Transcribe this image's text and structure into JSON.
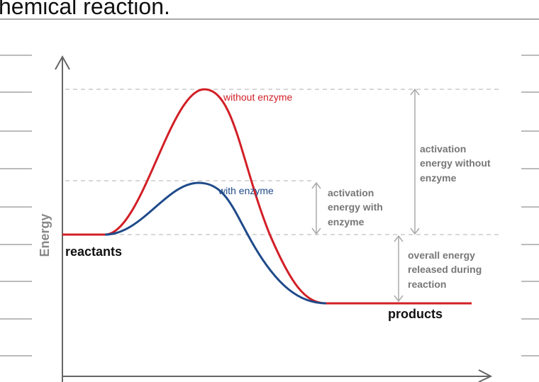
{
  "header": {
    "title": "hemical reaction."
  },
  "diagram": {
    "y_axis_label": "Energy",
    "reactants": "reactants",
    "products": "products",
    "without_enzyme": "without enzyme",
    "with_enzyme": "with enzyme",
    "activation_with": [
      "activation",
      "energy with",
      "enzyme"
    ],
    "activation_without": [
      "activation",
      "energy without",
      "enzyme"
    ],
    "overall": [
      "overall energy",
      "released during",
      "reaction"
    ]
  }
}
